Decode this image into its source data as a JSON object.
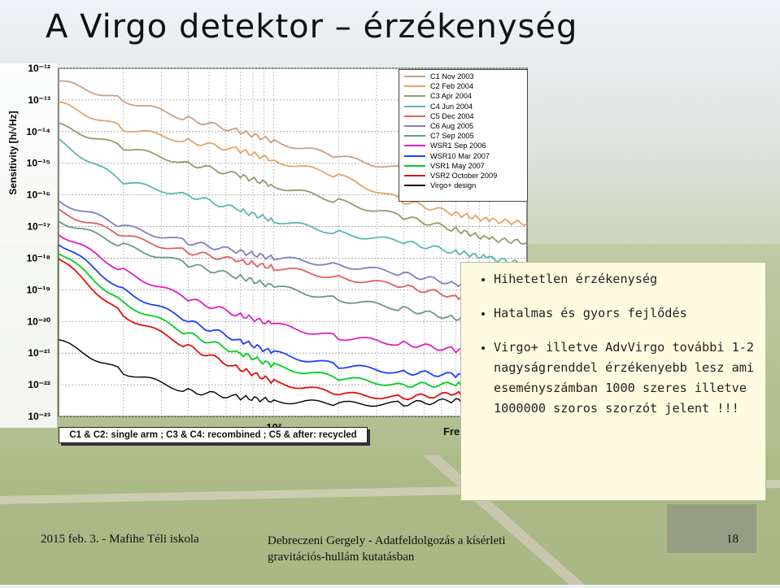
{
  "slide": {
    "title": "A Virgo detektor – érzékenység",
    "bullets": [
      "Hihetetlen érzékenység",
      "Hatalmas és gyors fejlődés",
      "Virgo+ illetve AdvVirgo további 1-2 nagyságrenddel érzékenyebb lesz ami eseményszámban 1000 szeres illetve 1000000 szoros szorzót jelent !!!"
    ],
    "footer_left": "2015 feb. 3. - Mafihe Téli iskola",
    "footer_mid": "Debreczeni Gergely - Adatfeldolgozás a kísérleti gravitációs-hullám kutatásban",
    "page_number": "18"
  },
  "colors": {
    "title": "#111111",
    "callout_bg": "#fffbe0",
    "plot_bg": "#ffffff"
  },
  "chart_data": {
    "type": "line",
    "title": "",
    "xlabel": "Fre",
    "ylabel": "Sensitivity [h/√Hz]",
    "x_scale": "log",
    "y_scale": "log",
    "xlim": [
      10,
      1500
    ],
    "ylim": [
      1e-23,
      1e-12
    ],
    "x_tick_labels": [
      "10²",
      "10³"
    ],
    "x_tick_values": [
      100,
      1000
    ],
    "y_tick_labels": [
      "10⁻¹²",
      "10⁻¹³",
      "10⁻¹⁴",
      "10⁻¹⁵",
      "10⁻¹⁶",
      "10⁻¹⁷",
      "10⁻¹⁸",
      "10⁻¹⁹",
      "10⁻²⁰",
      "10⁻²¹",
      "10⁻²²",
      "10⁻²³"
    ],
    "y_tick_values": [
      -12,
      -13,
      -14,
      -15,
      -16,
      -17,
      -18,
      -19,
      -20,
      -21,
      -22,
      -23
    ],
    "grid": true,
    "legend_position": "top-right",
    "footnote": "C1 & C2: single arm ; C3 & C4: recombined ; C5 & after: recycled",
    "series": [
      {
        "name": "C1 Nov 2003",
        "color": "#c9a084",
        "x": [
          10,
          20,
          40,
          70,
          100,
          200,
          400,
          700,
          1000,
          1500
        ],
        "y": [
          -12.4,
          -13.0,
          -13.6,
          -14.0,
          -14.3,
          -14.8,
          -15.2,
          -15.5,
          -15.6,
          -15.7
        ]
      },
      {
        "name": "C2 Feb 2004",
        "color": "#e3a46a",
        "x": [
          10,
          20,
          40,
          70,
          100,
          200,
          400,
          700,
          1000,
          1500
        ],
        "y": [
          -13.1,
          -13.9,
          -14.3,
          -14.6,
          -14.9,
          -15.4,
          -16.2,
          -16.6,
          -16.8,
          -16.9
        ]
      },
      {
        "name": "C3 Apr 2004",
        "color": "#8ca06a",
        "x": [
          10,
          20,
          40,
          70,
          100,
          200,
          400,
          700,
          1000,
          1500
        ],
        "y": [
          -13.8,
          -14.5,
          -15.0,
          -15.4,
          -15.7,
          -16.2,
          -16.7,
          -17.1,
          -17.4,
          -17.5
        ]
      },
      {
        "name": "C4 Jun 2004",
        "color": "#5db7b0",
        "x": [
          10,
          20,
          40,
          70,
          100,
          200,
          400,
          700,
          1000,
          1500
        ],
        "y": [
          -14.3,
          -15.6,
          -16.0,
          -16.5,
          -16.8,
          -17.2,
          -17.5,
          -17.8,
          -18.0,
          -18.2
        ]
      },
      {
        "name": "C5 Dec 2004",
        "color": "#e06060",
        "x": [
          10,
          20,
          40,
          70,
          100,
          200,
          400,
          700,
          1000,
          1500
        ],
        "y": [
          -16.5,
          -17.3,
          -17.8,
          -18.1,
          -18.3,
          -18.6,
          -18.9,
          -19.2,
          -19.4,
          -19.5
        ]
      },
      {
        "name": "C6 Aug 2005",
        "color": "#8080c0",
        "x": [
          10,
          20,
          40,
          70,
          100,
          200,
          400,
          700,
          1000,
          1500
        ],
        "y": [
          -16.2,
          -17.0,
          -17.5,
          -17.8,
          -18.0,
          -18.2,
          -18.5,
          -18.8,
          -19.1,
          -19.2
        ]
      },
      {
        "name": "C7 Sep 2005",
        "color": "#6a9a8a",
        "x": [
          10,
          20,
          40,
          70,
          100,
          200,
          400,
          700,
          1000,
          1500
        ],
        "y": [
          -16.8,
          -17.6,
          -18.2,
          -18.6,
          -18.9,
          -19.3,
          -19.6,
          -19.9,
          -20.1,
          -20.2
        ]
      },
      {
        "name": "WSR1 Sep 2006",
        "color": "#e020c0",
        "x": [
          10,
          20,
          40,
          70,
          100,
          200,
          400,
          700,
          1000,
          1500
        ],
        "y": [
          -17.2,
          -18.4,
          -19.3,
          -19.8,
          -20.1,
          -20.5,
          -20.7,
          -20.9,
          -21.0,
          -21.1
        ]
      },
      {
        "name": "WSR10 Mar 2007",
        "color": "#2040ff",
        "x": [
          10,
          20,
          40,
          70,
          100,
          200,
          400,
          700,
          1000,
          1500
        ],
        "y": [
          -17.5,
          -19.0,
          -20.0,
          -20.6,
          -21.0,
          -21.4,
          -21.6,
          -21.7,
          -21.8,
          -21.8
        ]
      },
      {
        "name": "VSR1 May 2007",
        "color": "#00d020",
        "x": [
          10,
          20,
          40,
          70,
          100,
          200,
          400,
          700,
          1000,
          1500
        ],
        "y": [
          -17.8,
          -19.4,
          -20.4,
          -21.0,
          -21.4,
          -21.8,
          -22.0,
          -22.0,
          -22.0,
          -22.0
        ]
      },
      {
        "name": "VSR2 October 2009",
        "color": "#e01010",
        "x": [
          10,
          20,
          40,
          70,
          100,
          200,
          400,
          700,
          1000,
          1500
        ],
        "y": [
          -18.0,
          -19.8,
          -20.8,
          -21.5,
          -21.9,
          -22.3,
          -22.4,
          -22.3,
          -22.2,
          -22.1
        ]
      },
      {
        "name": "Virgo+ design",
        "color": "#000000",
        "x": [
          10,
          20,
          40,
          70,
          100,
          200,
          400,
          700,
          1000,
          1500
        ],
        "y": [
          -20.6,
          -21.6,
          -22.2,
          -22.4,
          -22.5,
          -22.6,
          -22.6,
          -22.5,
          -22.4,
          -22.2
        ]
      }
    ]
  }
}
